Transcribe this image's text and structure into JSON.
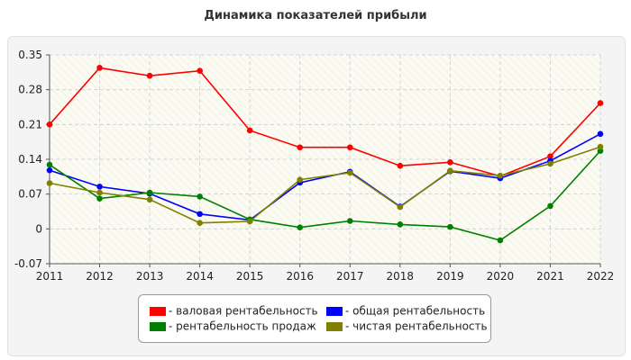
{
  "chart_data": {
    "type": "line",
    "title": "Динамика показателей прибыли",
    "x": [
      "2011",
      "2012",
      "2013",
      "2014",
      "2015",
      "2016",
      "2017",
      "2018",
      "2019",
      "2020",
      "2021",
      "2022"
    ],
    "ylim": [
      -0.07,
      0.35
    ],
    "yticks": [
      "0.35",
      "0.28",
      "0.21",
      "0.14",
      "0.07",
      "0",
      "-0.07"
    ],
    "ytick_values": [
      0.35,
      0.28,
      0.21,
      0.14,
      0.07,
      0,
      -0.07
    ],
    "grid": true,
    "legend_position": "bottom",
    "series": [
      {
        "name": "- валовая рентабельность",
        "color": "#ff0000",
        "values": [
          0.21,
          0.324,
          0.308,
          0.318,
          0.198,
          0.164,
          0.164,
          0.127,
          0.134,
          0.106,
          0.146,
          0.253
        ]
      },
      {
        "name": "- общая рентабельность",
        "color": "#0000ff",
        "values": [
          0.118,
          0.085,
          0.071,
          0.03,
          0.018,
          0.093,
          0.115,
          0.045,
          0.116,
          0.102,
          0.137,
          0.191
        ]
      },
      {
        "name": "- рентабельность продаж",
        "color": "#008000",
        "values": [
          0.129,
          0.061,
          0.073,
          0.065,
          0.019,
          0.003,
          0.016,
          0.009,
          0.004,
          -0.023,
          0.046,
          0.157
        ]
      },
      {
        "name": "- чистая рентабельность",
        "color": "#808000",
        "values": [
          0.092,
          0.073,
          0.059,
          0.012,
          0.015,
          0.099,
          0.113,
          0.044,
          0.117,
          0.107,
          0.131,
          0.165
        ]
      }
    ]
  }
}
